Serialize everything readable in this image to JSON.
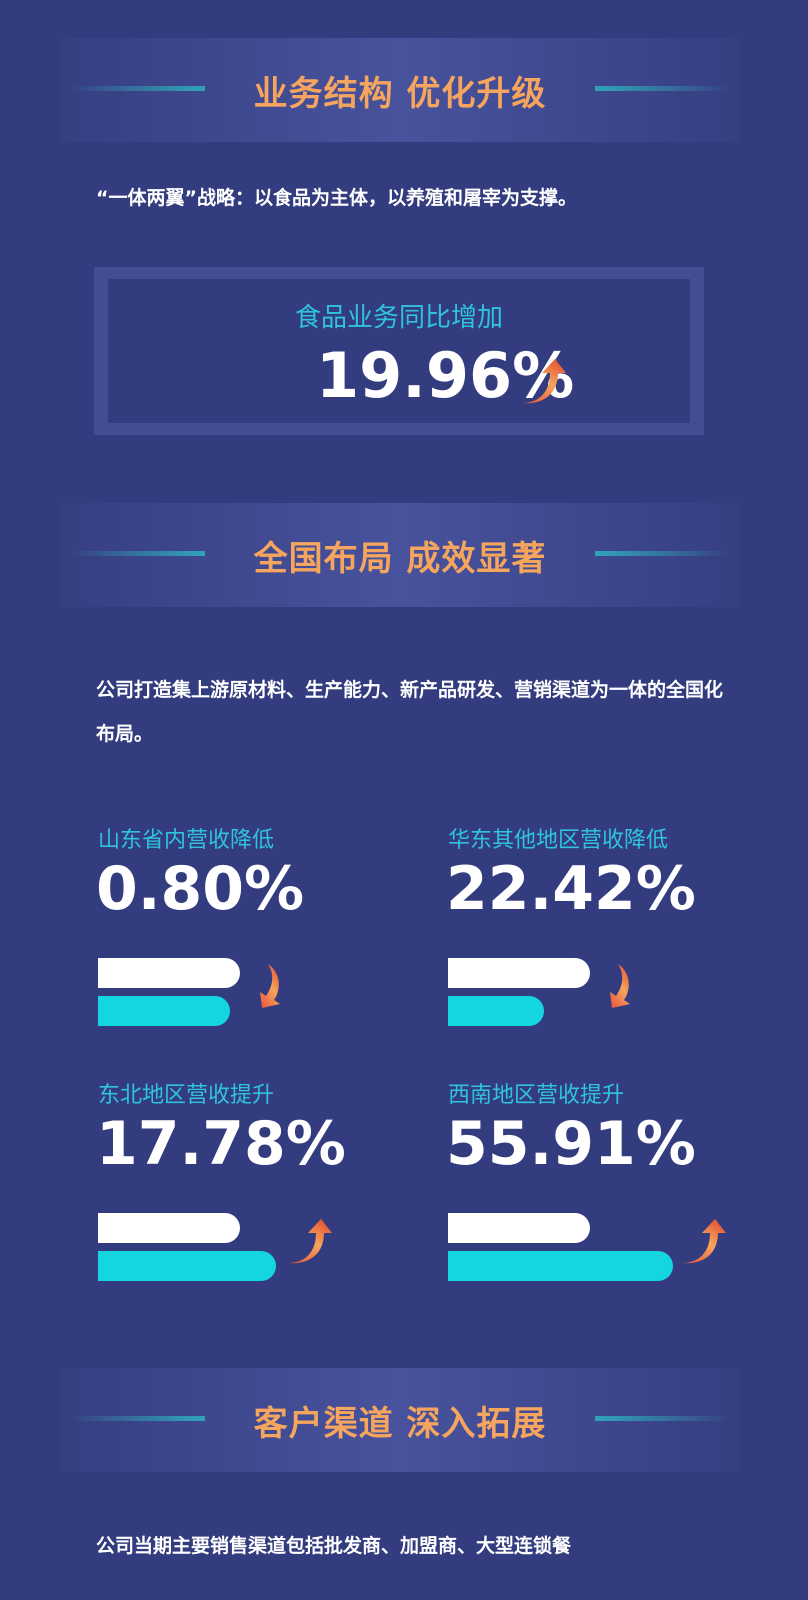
{
  "sections": [
    {
      "title": "业务结构 优化升级"
    },
    {
      "title": "全国布局 成效显著"
    },
    {
      "title": "客户渠道 深入拓展"
    }
  ],
  "strategy_text": "“一体两翼”战略：以食品为主体，以养殖和屠宰为支撑。",
  "highlight": {
    "label": "食品业务同比增加",
    "value": "19.96%",
    "direction": "up"
  },
  "layout_text": "公司打造集上游原材料、生产能力、新产品研发、营销渠道为一体的全国化布局。",
  "stats": [
    {
      "label": "山东省内营收降低",
      "value": "0.80%",
      "direction": "down"
    },
    {
      "label": "华东其他地区营收降低",
      "value": "22.42%",
      "direction": "down"
    },
    {
      "label": "东北地区营收提升",
      "value": "17.78%",
      "direction": "up"
    },
    {
      "label": "西南地区营收提升",
      "value": "55.91%",
      "direction": "up"
    }
  ],
  "channel_text": "公司当期主要销售渠道包括批发商、加盟商、大型连锁餐",
  "colors": {
    "background": "#333c7e",
    "title": "#f6a55e",
    "accent": "#13d6e0",
    "arrow": "#f08a3c"
  }
}
